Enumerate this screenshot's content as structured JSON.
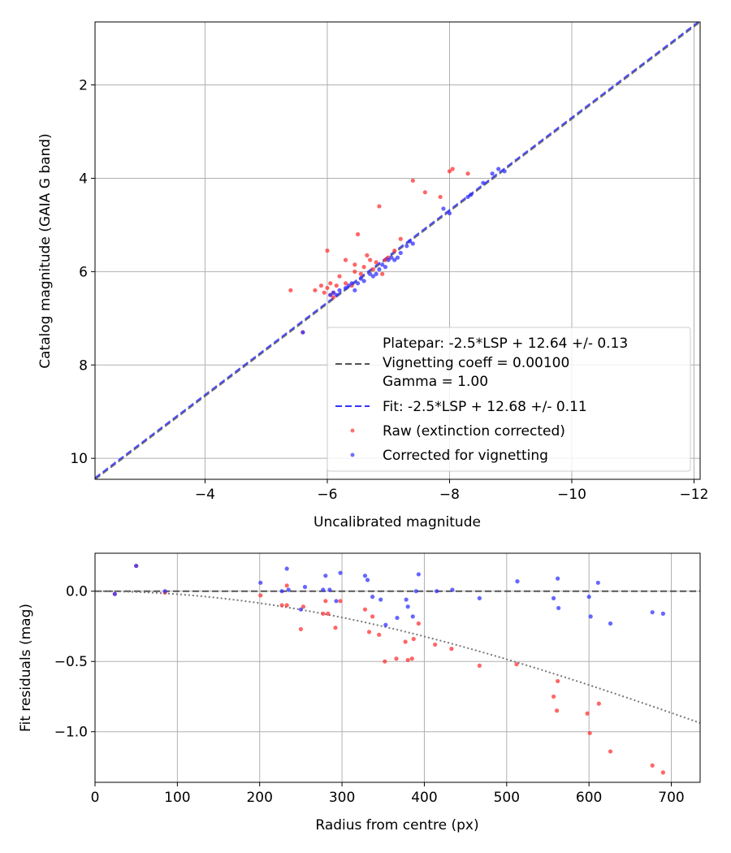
{
  "chart_data": [
    {
      "type": "scatter",
      "xlabel": "Uncalibrated magnitude",
      "ylabel": "Catalog magnitude (GAIA G band)",
      "xlim": [
        -2.2,
        -12.1
      ],
      "ylim": [
        10.45,
        0.65
      ],
      "x_inverted": true,
      "y_inverted": true,
      "grid": true,
      "xticks": [
        -4,
        -6,
        -8,
        -10,
        -12
      ],
      "xtick_labels": [
        "−4",
        "−6",
        "−8",
        "−10",
        "−12"
      ],
      "yticks": [
        2,
        4,
        6,
        8,
        10
      ],
      "ytick_labels": [
        "2",
        "4",
        "6",
        "8",
        "10"
      ],
      "legend_position": "lower right",
      "legend": {
        "platepar_lines": [
          "Platepar: -2.5*LSP + 12.64 +/- 0.13",
          "Vignetting coeff = 0.00100",
          "Gamma = 1.00"
        ],
        "fit_label": "Fit: -2.5*LSP + 12.68 +/- 0.11",
        "raw_label": "Raw (extinction corrected)",
        "corrected_label": "Corrected for vignetting"
      },
      "lines": [
        {
          "name": "platepar",
          "style": "dashed",
          "color": "#555555",
          "x": [
            -2.2,
            -12.1
          ],
          "y": [
            10.45,
            0.65
          ]
        },
        {
          "name": "fit",
          "style": "dashed",
          "color": "#3333ff",
          "x": [
            -2.2,
            -12.1
          ],
          "y": [
            10.42,
            0.62
          ]
        }
      ],
      "series": [
        {
          "name": "Raw (extinction corrected)",
          "color": "#ff3333",
          "points": [
            [
              -5.4,
              6.4
            ],
            [
              -5.6,
              7.3
            ],
            [
              -5.8,
              6.4
            ],
            [
              -5.9,
              6.3
            ],
            [
              -5.95,
              6.45
            ],
            [
              -6.0,
              6.35
            ],
            [
              -6.0,
              5.55
            ],
            [
              -6.05,
              6.25
            ],
            [
              -6.05,
              6.5
            ],
            [
              -6.1,
              6.45
            ],
            [
              -6.1,
              6.55
            ],
            [
              -6.15,
              6.3
            ],
            [
              -6.2,
              6.1
            ],
            [
              -6.3,
              6.25
            ],
            [
              -6.3,
              5.75
            ],
            [
              -6.4,
              6.3
            ],
            [
              -6.45,
              6.0
            ],
            [
              -6.45,
              5.85
            ],
            [
              -6.5,
              5.2
            ],
            [
              -6.55,
              6.05
            ],
            [
              -6.6,
              5.9
            ],
            [
              -6.65,
              5.65
            ],
            [
              -6.7,
              5.75
            ],
            [
              -6.75,
              5.95
            ],
            [
              -6.8,
              5.8
            ],
            [
              -6.85,
              4.6
            ],
            [
              -6.9,
              6.05
            ],
            [
              -6.95,
              5.75
            ],
            [
              -7.0,
              5.7
            ],
            [
              -7.1,
              5.55
            ],
            [
              -7.2,
              5.3
            ],
            [
              -7.4,
              4.05
            ],
            [
              -7.6,
              4.3
            ],
            [
              -7.85,
              4.4
            ],
            [
              -8.0,
              3.85
            ],
            [
              -8.05,
              3.8
            ],
            [
              -8.3,
              3.9
            ]
          ]
        },
        {
          "name": "Corrected for vignetting",
          "color": "#3333ff",
          "points": [
            [
              -5.6,
              7.3
            ],
            [
              -6.05,
              6.5
            ],
            [
              -6.1,
              6.45
            ],
            [
              -6.15,
              6.5
            ],
            [
              -6.2,
              6.4
            ],
            [
              -6.3,
              6.35
            ],
            [
              -6.35,
              6.3
            ],
            [
              -6.4,
              6.25
            ],
            [
              -6.45,
              6.4
            ],
            [
              -6.5,
              6.25
            ],
            [
              -6.55,
              6.15
            ],
            [
              -6.6,
              6.2
            ],
            [
              -6.7,
              6.05
            ],
            [
              -6.75,
              6.1
            ],
            [
              -6.8,
              6.05
            ],
            [
              -6.85,
              5.95
            ],
            [
              -6.9,
              5.85
            ],
            [
              -6.95,
              5.9
            ],
            [
              -7.0,
              5.75
            ],
            [
              -7.05,
              5.7
            ],
            [
              -7.1,
              5.75
            ],
            [
              -7.15,
              5.7
            ],
            [
              -7.2,
              5.6
            ],
            [
              -7.3,
              5.45
            ],
            [
              -7.35,
              5.35
            ],
            [
              -7.4,
              5.4
            ],
            [
              -7.9,
              4.65
            ],
            [
              -8.0,
              4.75
            ],
            [
              -8.3,
              4.4
            ],
            [
              -8.35,
              4.35
            ],
            [
              -8.55,
              4.1
            ],
            [
              -8.7,
              3.9
            ],
            [
              -8.8,
              3.8
            ],
            [
              -8.9,
              3.85
            ]
          ]
        }
      ]
    },
    {
      "type": "scatter",
      "xlabel": "Radius from centre (px)",
      "ylabel": "Fit residuals (mag)",
      "xlim": [
        0,
        735
      ],
      "ylim": [
        -1.36,
        0.27
      ],
      "grid": true,
      "xticks": [
        0,
        100,
        200,
        300,
        400,
        500,
        600,
        700
      ],
      "xtick_labels": [
        "0",
        "100",
        "200",
        "300",
        "400",
        "500",
        "600",
        "700"
      ],
      "yticks": [
        0.0,
        -0.5,
        -1.0
      ],
      "ytick_labels": [
        "0.0",
        "−0.5",
        "−1.0"
      ],
      "zero_line": {
        "style": "dashed",
        "color": "#555555",
        "y": 0.0
      },
      "vignetting_curve": {
        "style": "dotted",
        "color": "#777777",
        "coeff": 0.001
      },
      "series": [
        {
          "name": "Raw (extinction corrected)",
          "color": "#ff3333",
          "points": [
            [
              24,
              -0.02
            ],
            [
              50,
              0.18
            ],
            [
              85,
              -0.01
            ],
            [
              201,
              -0.03
            ],
            [
              227,
              -0.1
            ],
            [
              233,
              -0.1
            ],
            [
              233,
              0.04
            ],
            [
              250,
              -0.27
            ],
            [
              253,
              -0.11
            ],
            [
              277,
              -0.16
            ],
            [
              283,
              -0.16
            ],
            [
              280,
              -0.07
            ],
            [
              292,
              -0.26
            ],
            [
              298,
              -0.07
            ],
            [
              328,
              -0.13
            ],
            [
              333,
              -0.29
            ],
            [
              337,
              -0.18
            ],
            [
              345,
              -0.31
            ],
            [
              352,
              -0.5
            ],
            [
              366,
              -0.48
            ],
            [
              377,
              -0.36
            ],
            [
              380,
              -0.49
            ],
            [
              385,
              -0.48
            ],
            [
              387,
              -0.34
            ],
            [
              393,
              -0.23
            ],
            [
              413,
              -0.38
            ],
            [
              433,
              -0.41
            ],
            [
              467,
              -0.53
            ],
            [
              512,
              -0.52
            ],
            [
              557,
              -0.75
            ],
            [
              561,
              -0.85
            ],
            [
              562,
              -0.64
            ],
            [
              598,
              -0.87
            ],
            [
              601,
              -1.01
            ],
            [
              612,
              -0.8
            ],
            [
              626,
              -1.14
            ],
            [
              677,
              -1.24
            ],
            [
              690,
              -1.29
            ]
          ]
        },
        {
          "name": "Corrected for vignetting",
          "color": "#3333ff",
          "points": [
            [
              24,
              -0.02
            ],
            [
              50,
              0.18
            ],
            [
              85,
              0.0
            ],
            [
              201,
              0.06
            ],
            [
              227,
              0.0
            ],
            [
              233,
              0.16
            ],
            [
              235,
              0.01
            ],
            [
              250,
              -0.13
            ],
            [
              255,
              0.03
            ],
            [
              277,
              0.01
            ],
            [
              280,
              0.11
            ],
            [
              285,
              0.01
            ],
            [
              293,
              -0.07
            ],
            [
              298,
              0.13
            ],
            [
              328,
              0.11
            ],
            [
              331,
              0.08
            ],
            [
              337,
              -0.04
            ],
            [
              347,
              -0.06
            ],
            [
              353,
              -0.24
            ],
            [
              367,
              -0.19
            ],
            [
              378,
              -0.06
            ],
            [
              380,
              -0.11
            ],
            [
              386,
              -0.18
            ],
            [
              390,
              0.0
            ],
            [
              393,
              0.12
            ],
            [
              415,
              0.0
            ],
            [
              434,
              0.01
            ],
            [
              467,
              -0.05
            ],
            [
              513,
              0.07
            ],
            [
              557,
              -0.05
            ],
            [
              562,
              0.09
            ],
            [
              563,
              -0.12
            ],
            [
              600,
              -0.04
            ],
            [
              602,
              -0.18
            ],
            [
              611,
              0.06
            ],
            [
              626,
              -0.23
            ],
            [
              677,
              -0.15
            ],
            [
              690,
              -0.16
            ]
          ]
        }
      ]
    }
  ]
}
